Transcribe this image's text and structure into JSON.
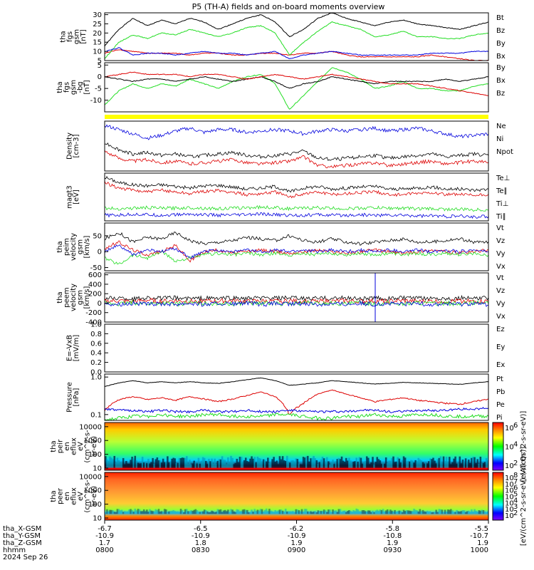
{
  "title": "P5 (TH-A) fields and on-board moments overview",
  "colors": {
    "black": "#000000",
    "red": "#dd0000",
    "green": "#22dd22",
    "blue": "#0000dd",
    "yellow": "#ffff00"
  },
  "chart_data": [
    {
      "type": "line",
      "ylabel": [
        "tha",
        "fgs",
        "gsm",
        "[nT]"
      ],
      "ylim": [
        5,
        31
      ],
      "yticks": [
        5,
        10,
        15,
        20,
        25,
        30
      ],
      "series": [
        {
          "name": "Bt",
          "color": "#000000",
          "values": [
            13,
            22,
            28,
            24,
            27,
            25,
            28,
            26,
            22,
            25,
            28,
            30,
            26,
            18,
            22,
            28,
            31,
            28,
            26,
            24,
            26,
            27,
            25,
            24,
            23,
            22,
            24,
            26
          ]
        },
        {
          "name": "Bz",
          "color": "#dd0000",
          "values": [
            9,
            11,
            10,
            9,
            9,
            9,
            8,
            9,
            9,
            8,
            8,
            9,
            9,
            8,
            9,
            9,
            10,
            8,
            7,
            7,
            7,
            7,
            7,
            8,
            7,
            6,
            5,
            5
          ]
        },
        {
          "name": "By",
          "color": "#22dd22",
          "values": [
            6,
            15,
            19,
            17,
            20,
            19,
            22,
            20,
            18,
            20,
            23,
            24,
            20,
            8,
            15,
            21,
            26,
            24,
            22,
            18,
            19,
            21,
            18,
            18,
            17,
            17,
            19,
            20
          ]
        },
        {
          "name": "Bx",
          "color": "#0000dd",
          "values": [
            10,
            12,
            8,
            9,
            9,
            8,
            9,
            10,
            9,
            9,
            8,
            9,
            10,
            6,
            8,
            9,
            10,
            9,
            8,
            8,
            8,
            8,
            8,
            9,
            9,
            9,
            10,
            10
          ]
        }
      ]
    },
    {
      "type": "line",
      "ylabel": [
        "tha",
        "fgs",
        "gsm",
        "-bg",
        "[nT]"
      ],
      "ylim": [
        -15,
        6
      ],
      "yticks": [
        -10,
        -5,
        0,
        5
      ],
      "series": [
        {
          "name": "By",
          "color": "#22dd22",
          "values": [
            -12,
            -6,
            -3,
            -5,
            -3,
            -4,
            -1,
            -3,
            -5,
            -2,
            0,
            1,
            -3,
            -14,
            -8,
            -2,
            4,
            2,
            -1,
            -5,
            -4,
            -2,
            -5,
            -5,
            -6,
            -6,
            -4,
            -3
          ]
        },
        {
          "name": "Bx",
          "color": "#000000",
          "values": [
            0,
            -1,
            -2,
            -1,
            -1,
            -2,
            -1,
            0,
            -1,
            -2,
            -1,
            0,
            -2,
            -5,
            -3,
            -2,
            0,
            -1,
            -2,
            -3,
            -2,
            -2,
            -2,
            -2,
            -1,
            -2,
            -1,
            0
          ]
        },
        {
          "name": "Bz",
          "color": "#dd0000",
          "values": [
            0,
            1,
            2,
            1,
            1,
            1,
            0,
            1,
            1,
            0,
            -1,
            0,
            1,
            0,
            -1,
            0,
            1,
            0,
            -1,
            -2,
            -3,
            -3,
            -3,
            -4,
            -5,
            -6,
            -7,
            -8
          ]
        }
      ]
    },
    {
      "type": "line",
      "ylabel": [
        "Density",
        "[cm-3]"
      ],
      "series": [
        {
          "name": "Ne",
          "color": "#dd0000",
          "values": [
            0.8,
            0.55,
            0.45,
            0.5,
            0.4,
            0.45,
            0.35,
            0.4,
            0.45,
            0.5,
            0.4,
            0.35,
            0.4,
            0.45,
            0.6,
            0.3,
            0.25,
            0.3,
            0.35,
            0.4,
            0.3,
            0.35,
            0.4,
            0.45,
            0.35,
            0.4,
            0.45,
            0.4
          ]
        },
        {
          "name": "Ni",
          "color": "#000000",
          "values": [
            1.1,
            0.85,
            0.7,
            0.75,
            0.65,
            0.7,
            0.6,
            0.65,
            0.7,
            0.75,
            0.65,
            0.6,
            0.65,
            0.7,
            0.8,
            0.55,
            0.5,
            0.55,
            0.6,
            0.65,
            0.55,
            0.6,
            0.65,
            0.7,
            0.6,
            0.65,
            0.7,
            0.65
          ]
        },
        {
          "name": "Npot",
          "color": "#0000dd",
          "values": [
            1.7,
            1.55,
            1.4,
            1.25,
            1.35,
            1.5,
            1.6,
            1.45,
            1.55,
            1.55,
            1.45,
            1.5,
            1.55,
            1.5,
            1.4,
            1.5,
            1.55,
            1.5,
            1.55,
            1.6,
            1.5,
            1.55,
            1.6,
            1.5,
            1.4,
            1.3,
            1.35,
            1.4
          ]
        }
      ]
    },
    {
      "type": "line",
      "ylabel": [
        "magt3",
        "[eV]"
      ],
      "series": [
        {
          "name": "Te⊥",
          "color": "#dd0000",
          "values": [
            0.72,
            0.62,
            0.58,
            0.55,
            0.58,
            0.55,
            0.52,
            0.56,
            0.57,
            0.54,
            0.5,
            0.52,
            0.55,
            0.45,
            0.52,
            0.55,
            0.5,
            0.52,
            0.54,
            0.55,
            0.5,
            0.5,
            0.52,
            0.54,
            0.5,
            0.5,
            0.48,
            0.5
          ]
        },
        {
          "name": "Te∥",
          "color": "#000000",
          "values": [
            0.82,
            0.72,
            0.68,
            0.66,
            0.68,
            0.65,
            0.62,
            0.66,
            0.67,
            0.64,
            0.6,
            0.62,
            0.65,
            0.55,
            0.62,
            0.65,
            0.6,
            0.62,
            0.64,
            0.65,
            0.6,
            0.6,
            0.62,
            0.64,
            0.6,
            0.6,
            0.58,
            0.6
          ]
        },
        {
          "name": "Ti⊥",
          "color": "#0000dd",
          "values": [
            0.12,
            0.12,
            0.14,
            0.13,
            0.12,
            0.13,
            0.14,
            0.13,
            0.12,
            0.12,
            0.13,
            0.14,
            0.13,
            0.12,
            0.12,
            0.13,
            0.12,
            0.12,
            0.13,
            0.12,
            0.12,
            0.12,
            0.11,
            0.11,
            0.1,
            0.1,
            0.09,
            0.1
          ]
        },
        {
          "name": "Ti∥",
          "color": "#22dd22",
          "values": [
            0.25,
            0.24,
            0.25,
            0.26,
            0.25,
            0.25,
            0.26,
            0.25,
            0.24,
            0.25,
            0.26,
            0.27,
            0.26,
            0.24,
            0.25,
            0.26,
            0.25,
            0.24,
            0.25,
            0.26,
            0.25,
            0.25,
            0.24,
            0.24,
            0.23,
            0.23,
            0.22,
            0.22
          ]
        }
      ]
    },
    {
      "type": "line",
      "ylabel": [
        "tha",
        "peim",
        "velocity",
        "gsm",
        "[km/s]"
      ],
      "ylim": [
        -60,
        90
      ],
      "yticks": [
        -50,
        0,
        50
      ],
      "series": [
        {
          "name": "Vt",
          "color": "#000000",
          "values": [
            40,
            60,
            30,
            45,
            40,
            60,
            35,
            25,
            30,
            35,
            45,
            40,
            35,
            50,
            35,
            30,
            40,
            30,
            25,
            30,
            35,
            40,
            30,
            30,
            35,
            40,
            30,
            30
          ]
        },
        {
          "name": "Vz",
          "color": "#dd0000",
          "values": [
            10,
            30,
            5,
            -10,
            0,
            20,
            -30,
            0,
            5,
            -5,
            0,
            5,
            0,
            -5,
            0,
            5,
            0,
            -5,
            0,
            5,
            0,
            -5,
            0,
            5,
            0,
            -5,
            0,
            5
          ]
        },
        {
          "name": "Vy",
          "color": "#22dd22",
          "values": [
            -20,
            -40,
            -10,
            -20,
            0,
            -30,
            -20,
            -10,
            -5,
            -10,
            -5,
            -10,
            -5,
            -10,
            -5,
            -10,
            -5,
            -10,
            -5,
            -10,
            -5,
            -10,
            -5,
            -10,
            -5,
            -10,
            -5,
            -10
          ]
        },
        {
          "name": "Vx",
          "color": "#0000dd",
          "values": [
            0,
            20,
            -10,
            5,
            0,
            10,
            -20,
            0,
            5,
            0,
            5,
            0,
            5,
            0,
            5,
            0,
            5,
            0,
            5,
            0,
            5,
            0,
            5,
            0,
            5,
            0,
            5,
            0
          ]
        }
      ]
    },
    {
      "type": "line",
      "ylabel": [
        "tha",
        "peem",
        "velocity",
        "gsm",
        "[km/s]"
      ],
      "ylim": [
        -400,
        640
      ],
      "yticks": [
        -400,
        -200,
        0,
        200,
        400,
        600
      ],
      "series": [
        {
          "name": "Vt",
          "color": "#000000",
          "values": [
            100,
            110,
            90,
            120,
            100,
            110,
            95,
            105,
            100,
            110,
            95,
            105,
            100,
            110,
            95,
            105,
            100,
            110,
            95,
            105,
            100,
            110,
            95,
            105,
            100,
            110,
            95,
            105
          ]
        },
        {
          "name": "Vz",
          "color": "#dd0000",
          "values": [
            40,
            50,
            30,
            60,
            40,
            50,
            35,
            45,
            40,
            50,
            35,
            45,
            40,
            50,
            35,
            45,
            40,
            50,
            35,
            45,
            40,
            50,
            35,
            45,
            40,
            50,
            35,
            45
          ]
        },
        {
          "name": "Vy",
          "color": "#22dd22",
          "values": [
            0,
            -20,
            10,
            -10,
            0,
            -20,
            10,
            -10,
            0,
            -20,
            10,
            -10,
            0,
            -20,
            10,
            -10,
            0,
            -20,
            10,
            -10,
            0,
            -20,
            10,
            -10,
            0,
            -20,
            10,
            -10
          ]
        },
        {
          "name": "Vx",
          "color": "#0000dd",
          "values": [
            -10,
            -20,
            0,
            -30,
            -10,
            -20,
            0,
            -30,
            -10,
            -20,
            0,
            -30,
            -10,
            -20,
            0,
            -30,
            -10,
            -20,
            0,
            -30,
            -10,
            -20,
            0,
            -30,
            -10,
            -20,
            0,
            -30
          ]
        }
      ]
    },
    {
      "type": "line",
      "ylabel": [
        "E=-VxB",
        "[mV/m]"
      ],
      "ylim": [
        0,
        1
      ],
      "yticks": [
        0.0,
        0.2,
        0.4,
        0.6,
        0.8,
        1.0
      ],
      "series": [
        {
          "name": "Ez",
          "color": "#dd0000",
          "values": []
        },
        {
          "name": "Ey",
          "color": "#22dd22",
          "values": []
        },
        {
          "name": "Ex",
          "color": "#0000dd",
          "values": []
        }
      ]
    },
    {
      "type": "line",
      "ylabel": [
        "Pressure",
        "[nPa]"
      ],
      "scale": "log",
      "ylim": [
        0.07,
        1.2
      ],
      "yticks": [
        0.1,
        1.0
      ],
      "series": [
        {
          "name": "Pt",
          "color": "#000000",
          "values": [
            0.55,
            0.7,
            0.8,
            0.7,
            0.75,
            0.7,
            0.75,
            0.7,
            0.68,
            0.75,
            0.85,
            0.95,
            0.8,
            0.6,
            0.65,
            0.7,
            0.8,
            0.75,
            0.7,
            0.65,
            0.68,
            0.72,
            0.7,
            0.68,
            0.66,
            0.64,
            0.7,
            0.75
          ]
        },
        {
          "name": "Pb",
          "color": "#dd0000",
          "values": [
            0.13,
            0.25,
            0.3,
            0.25,
            0.28,
            0.24,
            0.3,
            0.26,
            0.22,
            0.26,
            0.32,
            0.4,
            0.3,
            0.1,
            0.2,
            0.35,
            0.45,
            0.35,
            0.28,
            0.22,
            0.25,
            0.28,
            0.24,
            0.22,
            0.2,
            0.19,
            0.22,
            0.26
          ]
        },
        {
          "name": "Pe",
          "color": "#22dd22",
          "values": [
            0.07,
            0.08,
            0.09,
            0.09,
            0.1,
            0.09,
            0.09,
            0.1,
            0.1,
            0.09,
            0.09,
            0.09,
            0.1,
            0.1,
            0.09,
            0.08,
            0.08,
            0.09,
            0.09,
            0.1,
            0.09,
            0.09,
            0.1,
            0.1,
            0.09,
            0.09,
            0.09,
            0.09
          ]
        },
        {
          "name": "Pi",
          "color": "#0000dd",
          "values": [
            0.14,
            0.13,
            0.13,
            0.12,
            0.13,
            0.12,
            0.12,
            0.13,
            0.12,
            0.12,
            0.13,
            0.12,
            0.12,
            0.13,
            0.12,
            0.12,
            0.12,
            0.12,
            0.13,
            0.13,
            0.12,
            0.12,
            0.13,
            0.13,
            0.13,
            0.14,
            0.14,
            0.15
          ]
        }
      ]
    },
    {
      "type": "heatmap",
      "ylabel": [
        "tha",
        "peir",
        "en",
        "eflux",
        "eV",
        "(cm^2-s-",
        "sr-eV)"
      ],
      "scale": "log",
      "ylim": [
        7,
        20000
      ],
      "yticks": [
        10,
        100,
        1000,
        10000
      ],
      "colorbar": {
        "label": "[eV/(cm^2-s-sr-eV)]",
        "tick_exponents": [
          6,
          4,
          2
        ]
      }
    },
    {
      "type": "heatmap",
      "ylabel": [
        "tha",
        "peer",
        "en",
        "eflux",
        "eV",
        "(cm^2-s-",
        "sr-eV)"
      ],
      "scale": "log",
      "ylim": [
        7,
        20000
      ],
      "yticks": [
        10,
        100,
        1000,
        10000
      ],
      "colorbar": {
        "label": "[eV/(cm^2-s-sr-eV) (All Qs)]",
        "tick_exponents": [
          8,
          7,
          6,
          5,
          4,
          3,
          2
        ]
      }
    }
  ],
  "x_axis": {
    "rows": [
      {
        "label": "tha_X-GSM",
        "values": [
          "-6.7",
          "-6.5",
          "-6.2",
          "-5.8",
          "-5.5"
        ]
      },
      {
        "label": "tha_Y-GSM",
        "values": [
          "-10.9",
          "-10.9",
          "-10.9",
          "-10.8",
          "-10.7"
        ]
      },
      {
        "label": "tha_Z-GSM",
        "values": [
          "1.7",
          "1.8",
          "1.9",
          "1.9",
          "1.9"
        ]
      },
      {
        "label": "hhmm",
        "values": [
          "0800",
          "0830",
          "0900",
          "0930",
          "1000"
        ]
      },
      {
        "label": "2024 Sep 26",
        "values": []
      }
    ]
  }
}
